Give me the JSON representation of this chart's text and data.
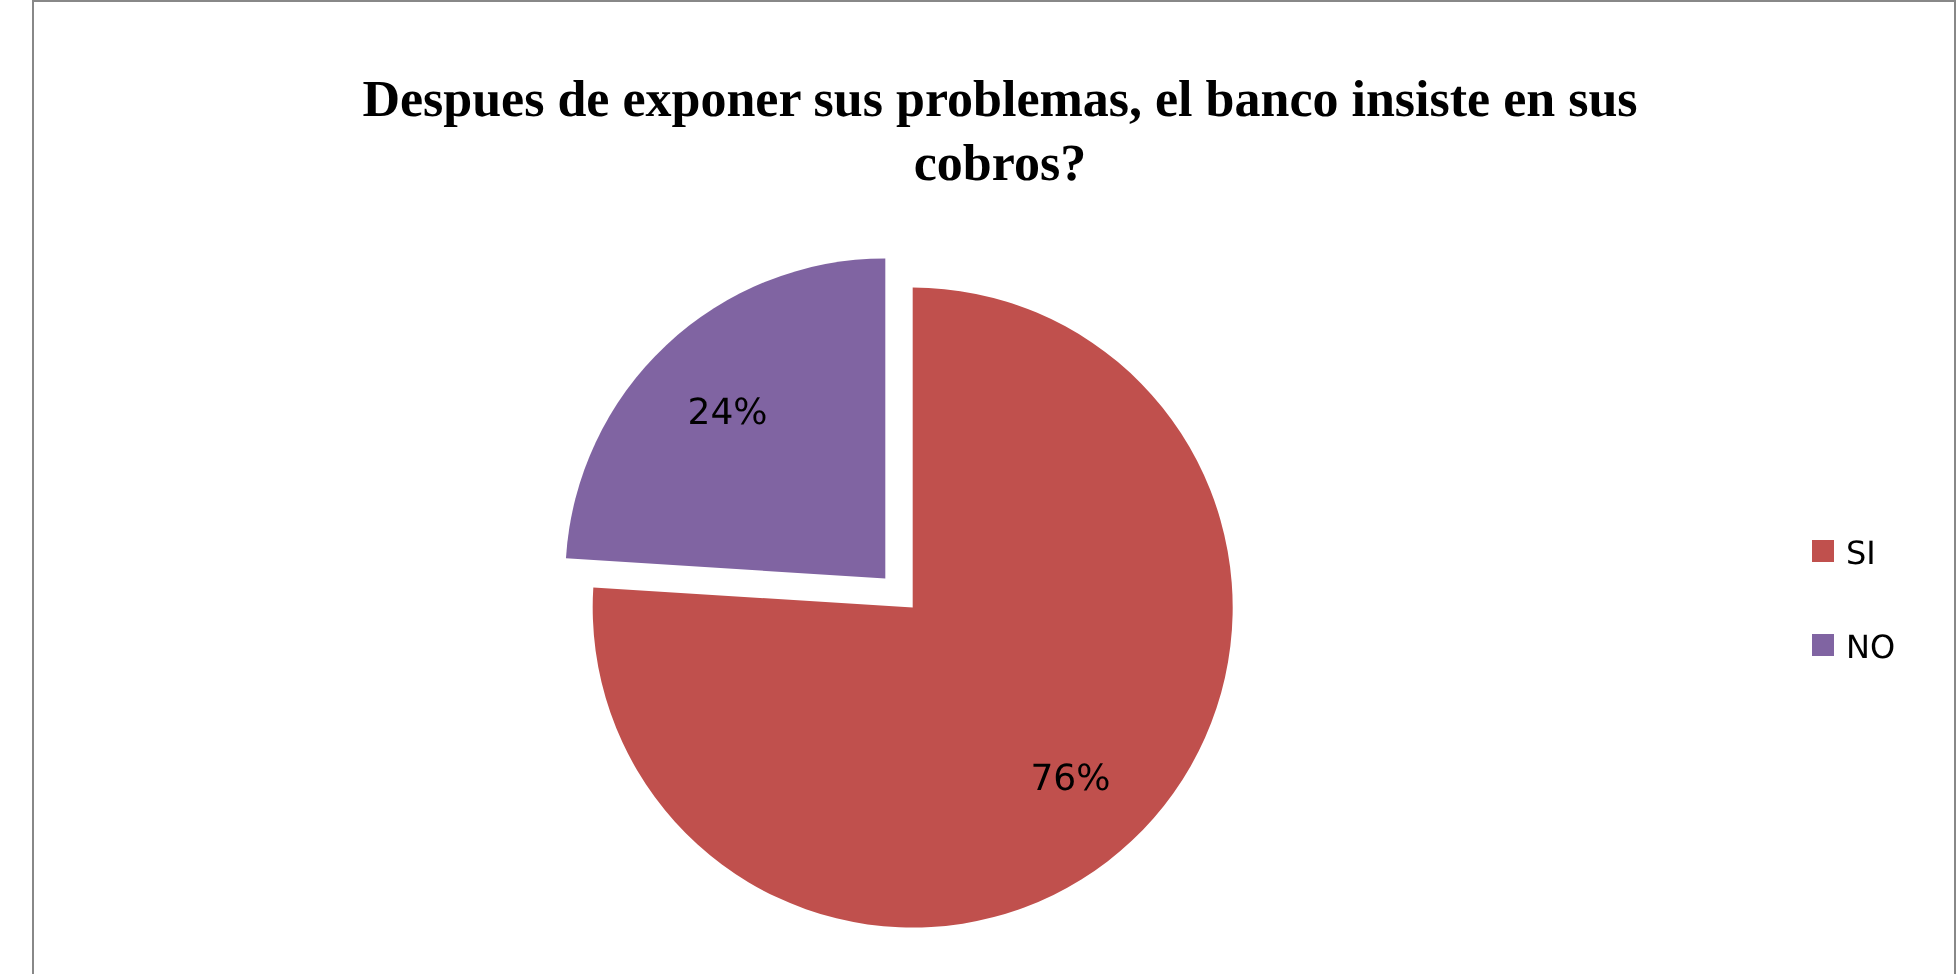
{
  "chart_data": {
    "type": "pie",
    "title": "Despues de exponer sus problemas, el banco insiste en sus cobros?",
    "categories": [
      "SI",
      "NO"
    ],
    "values": [
      76,
      24
    ],
    "colors": [
      "#c0504d",
      "#8064a2"
    ],
    "value_labels": [
      "76%",
      "24%"
    ],
    "legend": "right"
  }
}
